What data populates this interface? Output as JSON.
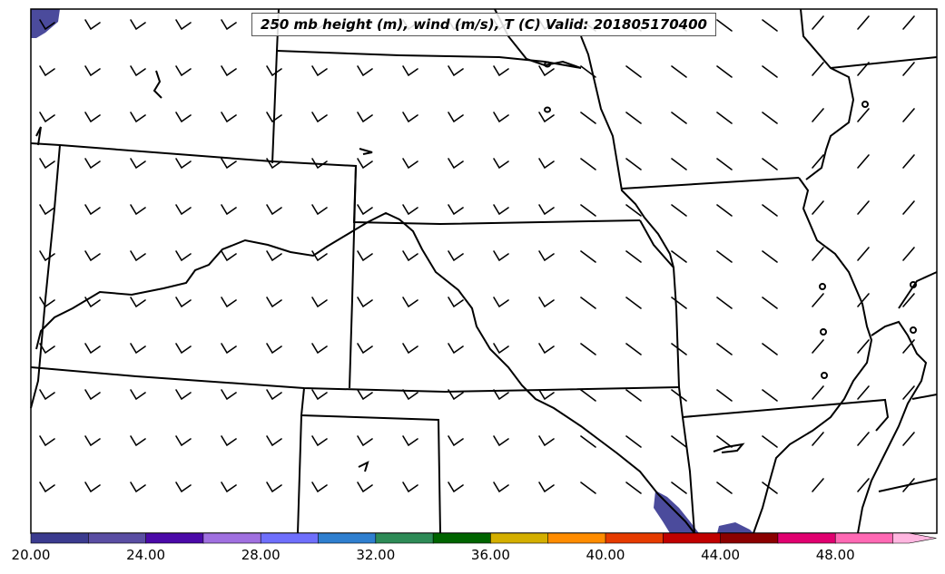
{
  "map": {
    "title": "250 mb height (m), wind (m/s), T (C) Valid: 201805170400"
  },
  "colorbar": {
    "ticks": [
      "20.00",
      "24.00",
      "28.00",
      "32.00",
      "36.00",
      "40.00",
      "44.00",
      "48.00"
    ],
    "colors": [
      "#3b3b8f",
      "#5a4ea3",
      "#4b0aa8",
      "#a070e0",
      "#6f6ffc",
      "#2f7fcf",
      "#2e8b57",
      "#006400",
      "#d4af00",
      "#ff8c00",
      "#e63b00",
      "#c00000",
      "#8b0000",
      "#e0006f",
      "#ff69b4",
      "#ffb6e0"
    ]
  }
}
